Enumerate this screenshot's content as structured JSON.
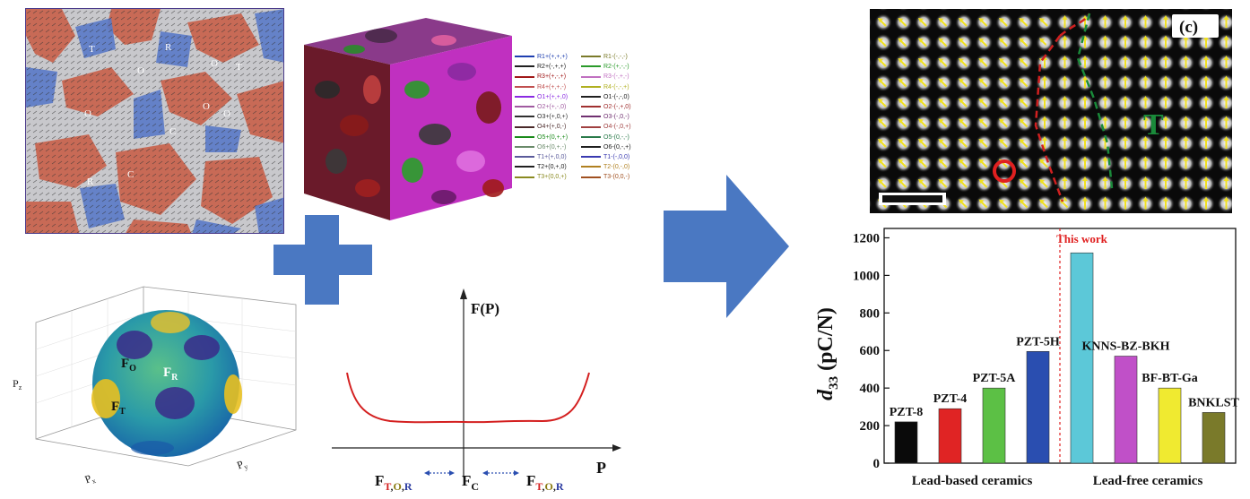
{
  "phase_field_map": {
    "labels": [
      {
        "text": "T"
      },
      {
        "text": "O"
      },
      {
        "text": "R"
      },
      {
        "text": "O"
      },
      {
        "text": "T"
      },
      {
        "text": "C"
      },
      {
        "text": "O"
      },
      {
        "text": "O"
      },
      {
        "text": "O"
      },
      {
        "text": "C"
      },
      {
        "text": "R"
      }
    ]
  },
  "domain_legend": {
    "left": [
      "R1+(+,+,+)",
      "R2+(-,+,+)",
      "R3+(+,-,+)",
      "R4+(+,+,-)",
      "O1+(+,+,0)",
      "O2+(+,-,0)",
      "O3+(+,0,+)",
      "O4+(+,0,-)",
      "O5+(0,+,+)",
      "O6+(0,+,-)",
      "T1+(+,0,0)",
      "T2+(0,+,0)",
      "T3+(0,0,+)"
    ],
    "right": [
      "R1-(-,-,-)",
      "R2-(+,-,-)",
      "R3-(-,+,-)",
      "R4-(-,-,+)",
      "O1-(-,-,0)",
      "O2-(-,+,0)",
      "O3-(-,0,-)",
      "O4-(-,0,+)",
      "O5-(0,-,-)",
      "O6-(0,-,+)",
      "T1-(-,0,0)",
      "T2-(0,-,0)",
      "T3-(0,0,-)"
    ],
    "colors_left": [
      "#1f3fb0",
      "#202020",
      "#a01818",
      "#c05050",
      "#8a2be2",
      "#a05aa0",
      "#303030",
      "#4a2a2a",
      "#1a8a1a",
      "#6a8a6a",
      "#5a5a9a",
      "#202020",
      "#8a8a20"
    ],
    "colors_right": [
      "#7a7a2a",
      "#2a9a2a",
      "#c070c0",
      "#b0b020",
      "#202020",
      "#a03030",
      "#703070",
      "#a04040",
      "#2a7a4a",
      "#202020",
      "#3a3ab0",
      "#b08020",
      "#a05020"
    ]
  },
  "sphere": {
    "ylabel": "P",
    "ylabel_sub": "z",
    "xlabel": "P",
    "xlabel_sub": "x",
    "zlabel": "P",
    "zlabel_sub": "y",
    "labels": [
      {
        "main": "F",
        "sub": "O"
      },
      {
        "main": "F",
        "sub": "R"
      },
      {
        "main": "F",
        "sub": "T"
      }
    ]
  },
  "energy_plot": {
    "ylabel": "F(P)",
    "xlabel": "P",
    "left_label_main": "F",
    "left_label_sub_parts": [
      {
        "text": "T",
        "color": "#d42020"
      },
      {
        "text": ",",
        "color": "#222222"
      },
      {
        "text": "O",
        "color": "#8a7a10"
      },
      {
        "text": ",",
        "color": "#222222"
      },
      {
        "text": "R",
        "color": "#2a3aa0"
      }
    ],
    "center_label_main": "F",
    "center_label_sub": "C",
    "right_label_main": "F",
    "right_label_sub_parts": [
      {
        "text": "T",
        "color": "#d42020"
      },
      {
        "text": ",",
        "color": "#222222"
      },
      {
        "text": "O",
        "color": "#8a7a10"
      },
      {
        "text": ",",
        "color": "#222222"
      },
      {
        "text": "R",
        "color": "#2a3aa0"
      }
    ]
  },
  "micrograph": {
    "panel_label": "(c)",
    "labels": [
      {
        "text": "O",
        "color": "#e02020"
      },
      {
        "text": "T",
        "color": "#1a8a3a"
      }
    ]
  },
  "colors": {
    "arrow_blue": "#4a78c2",
    "plus_blue": "#4a78c2",
    "curve_red": "#d42020"
  },
  "chart_data": {
    "type": "bar",
    "categories": [
      "PZT-8",
      "PZT-4",
      "PZT-5A",
      "PZT-5H",
      "This work",
      "KNNS-BZ-BKH",
      "BF-BT-Ga",
      "BNKLST"
    ],
    "values": [
      220,
      290,
      400,
      595,
      1120,
      570,
      400,
      270
    ],
    "colors": [
      "#0a0a0a",
      "#e02424",
      "#5cc045",
      "#2a4eb0",
      "#5cc8d8",
      "#c050c8",
      "#f0ea30",
      "#7a7a2a"
    ],
    "bar_labels": [
      "PZT-8",
      "PZT-4",
      "PZT-5A",
      "PZT-5H",
      "This work",
      "KNNS-BZ-BKH",
      "BF-BT-Ga",
      "BNKLST"
    ],
    "ylabel_main": "d",
    "ylabel_sub": "33",
    "ylabel_rest": " (pC/N)",
    "ylim": [
      0,
      1250
    ],
    "yticks": [
      0,
      200,
      400,
      600,
      800,
      1000,
      1200
    ],
    "group_labels": [
      "Lead-based ceramics",
      "Lead-free ceramics"
    ],
    "divider_color": "#e02020",
    "highlight_color": "#e02020"
  }
}
